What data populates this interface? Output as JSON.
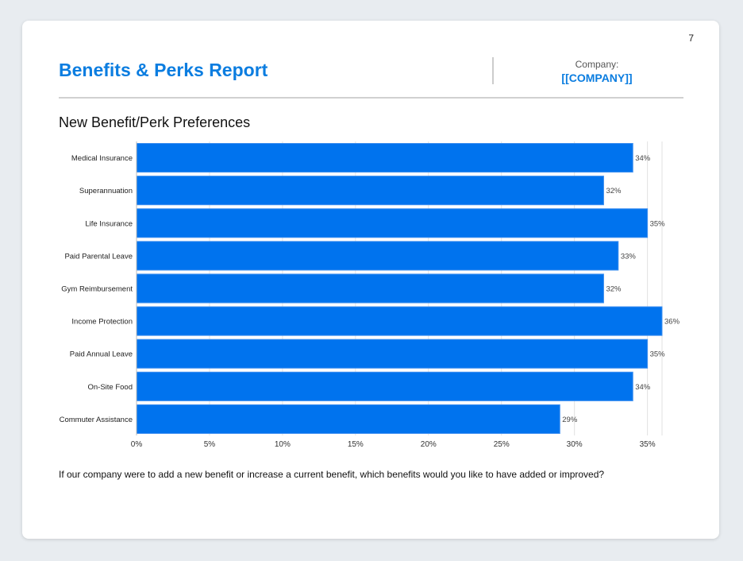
{
  "page_number": "7",
  "header": {
    "title": "Benefits & Perks Report",
    "company_label": "Company:",
    "company_value": "[[COMPANY]]"
  },
  "section_title": "New Benefit/Perk Preferences",
  "question": "If our company were to add a new benefit or increase a current benefit, which benefits would you like to have added or improved?",
  "chart_data": {
    "type": "bar",
    "orientation": "horizontal",
    "categories": [
      "Medical Insurance",
      "Superannuation",
      "Life Insurance",
      "Paid Parental Leave",
      "Gym Reimbursement",
      "Income Protection",
      "Paid Annual Leave",
      "On-Site Food",
      "Commuter Assistance"
    ],
    "values": [
      34,
      32,
      35,
      33,
      32,
      36,
      35,
      34,
      29
    ],
    "data_labels": [
      "34%",
      "32%",
      "35%",
      "33%",
      "32%",
      "36%",
      "35%",
      "34%",
      "29%"
    ],
    "xticks": [
      "0%",
      "5%",
      "10%",
      "15%",
      "20%",
      "25%",
      "30%",
      "35%"
    ],
    "xlim": [
      0,
      36
    ],
    "grid": true,
    "bar_color": "#0073ee"
  }
}
